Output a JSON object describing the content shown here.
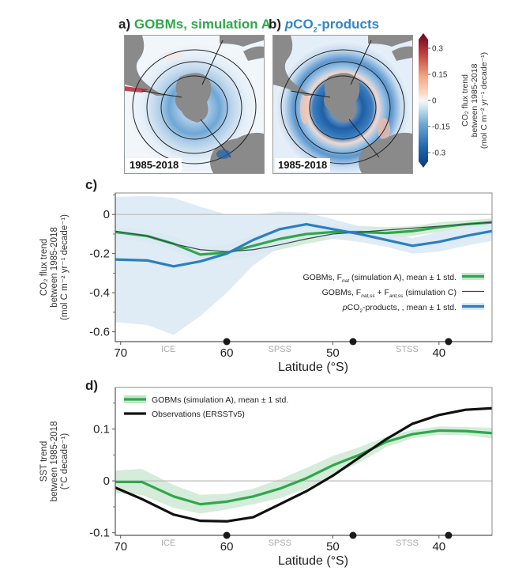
{
  "panels": {
    "a": {
      "label": "a)",
      "title": "GOBMs, simulation A",
      "period": "1985-2018"
    },
    "b": {
      "label": "b)",
      "title_prefix": "p",
      "title_main": "CO",
      "title_sub": "2",
      "title_suffix": "-products",
      "period": "1985-2018"
    },
    "c": {
      "label": "c)"
    },
    "d": {
      "label": "d)"
    }
  },
  "colorbar": {
    "ticks": [
      "0.3",
      "0.15",
      "0",
      "-0.15",
      "-0.3"
    ],
    "tick_values": [
      0.3,
      0.15,
      0,
      -0.15,
      -0.3
    ],
    "range": [
      -0.35,
      0.35
    ],
    "label_line1": "CO₂ flux trend",
    "label_line2": "between 1985-2018",
    "label_line3": "(mol C m⁻² yr⁻¹ decade⁻¹)",
    "colors": {
      "low": "#0b3a7a",
      "mid": "#f7f7f7",
      "high": "#6b0219"
    }
  },
  "colors": {
    "gobm_green": "#2ea84a",
    "gobm_band": "#c6e6cc",
    "pco2_blue": "#2a7fc1",
    "pco2_band": "#dbe9f4",
    "simC_line": "#37474f",
    "obs_black": "#111111",
    "land": "#8a8a8a",
    "zero_line": "#bbbbbb",
    "biome_label": "#aaaaaa"
  },
  "chart_data": [
    {
      "type": "line",
      "panel": "c",
      "title": "",
      "xlabel": "Latitude (°S)",
      "ylabel_lines": [
        "CO₂ flux trend",
        "between 1985-2018",
        "(mol C m⁻² yr⁻¹ decade⁻¹)"
      ],
      "xlim": [
        70.5,
        35
      ],
      "ylim": [
        -0.65,
        0.11
      ],
      "xticks": [
        70,
        60,
        50,
        40
      ],
      "xtick_labels": [
        "70",
        "60",
        "50",
        "40"
      ],
      "yticks": [
        0,
        -0.2,
        -0.4,
        -0.6
      ],
      "ytick_labels": [
        "0",
        "-0.2",
        "-0.4",
        "-0.6"
      ],
      "minor_yticks": [
        0.1,
        -0.1,
        -0.3,
        -0.5
      ],
      "zero_line": true,
      "biome_labels": [
        {
          "text": "ICE",
          "lat": 65.5
        },
        {
          "text": "SPSS",
          "lat": 55
        },
        {
          "text": "STSS",
          "lat": 43
        }
      ],
      "front_markers": [
        60,
        48.1,
        39.1
      ],
      "x": [
        70.5,
        67.5,
        65,
        62.5,
        60,
        57.5,
        55,
        52.5,
        50,
        47.5,
        45,
        42.5,
        40,
        37.5,
        35
      ],
      "series": [
        {
          "name": "GOBMs, F_nat (simulation A), mean ± 1 std.",
          "legend_main": "GOBMs, F",
          "legend_sub": "nat",
          "legend_rest": " (simulation A), mean ± 1 std.",
          "style": "band+line",
          "color": "gobm_green",
          "band_color": "gobm_band",
          "values": [
            -0.09,
            -0.11,
            -0.15,
            -0.205,
            -0.195,
            -0.16,
            -0.125,
            -0.1,
            -0.09,
            -0.09,
            -0.095,
            -0.085,
            -0.065,
            -0.05,
            -0.04
          ],
          "std": [
            0.03,
            0.03,
            0.035,
            0.04,
            0.04,
            0.05,
            0.055,
            0.05,
            0.035,
            0.03,
            0.03,
            0.025,
            0.025,
            0.02,
            0.02
          ]
        },
        {
          "name": "GOBMs, F_nat,ss + F_ant,ss (simulation C)",
          "legend_main": "GOBMs, F",
          "legend_sub": "nat,ss",
          "legend_mid": " + F",
          "legend_sub2": "ant,ss",
          "legend_rest": " (simulation C)",
          "style": "thin-line",
          "color": "simC_line",
          "values": [
            -0.085,
            -0.11,
            -0.15,
            -0.18,
            -0.19,
            -0.18,
            -0.155,
            -0.125,
            -0.1,
            -0.09,
            -0.08,
            -0.07,
            -0.06,
            -0.05,
            -0.04
          ]
        },
        {
          "name": "pCO2-products, , mean ± 1 std.",
          "legend_prefix": "p",
          "legend_main": "CO",
          "legend_sub": "2",
          "legend_rest": "-products, , mean ± 1 std.",
          "style": "band+line",
          "color": "pco2_blue",
          "band_color": "pco2_band",
          "values": [
            -0.23,
            -0.235,
            -0.265,
            -0.24,
            -0.2,
            -0.13,
            -0.075,
            -0.05,
            -0.075,
            -0.1,
            -0.13,
            -0.16,
            -0.14,
            -0.11,
            -0.085
          ],
          "std": [
            0.32,
            0.33,
            0.35,
            0.28,
            0.2,
            0.13,
            0.09,
            0.06,
            0.05,
            0.04,
            0.035,
            0.04,
            0.05,
            0.05,
            0.05
          ]
        }
      ],
      "legend_position": "lower-right"
    },
    {
      "type": "line",
      "panel": "d",
      "title": "",
      "xlabel": "Latitude (°S)",
      "ylabel_lines": [
        "SST trend",
        "between 1985-2018",
        "(°C decade⁻¹)"
      ],
      "xlim": [
        70.5,
        35
      ],
      "ylim": [
        -0.105,
        0.18
      ],
      "xticks": [
        70,
        60,
        50,
        40
      ],
      "xtick_labels": [
        "70",
        "60",
        "50",
        "40"
      ],
      "yticks": [
        0.1,
        0,
        -0.1
      ],
      "ytick_labels": [
        "0.1",
        "0",
        "-0.1"
      ],
      "minor_yticks": [
        0.15,
        0.05,
        -0.05
      ],
      "zero_line": true,
      "biome_labels": [
        {
          "text": "ICE",
          "lat": 65.5
        },
        {
          "text": "SPSS",
          "lat": 55
        },
        {
          "text": "STSS",
          "lat": 43
        }
      ],
      "front_markers": [
        60,
        48.1,
        39.1
      ],
      "x": [
        70.5,
        68,
        65,
        62.5,
        60,
        57.5,
        55,
        52.5,
        50,
        47.5,
        45,
        42.5,
        40,
        37.5,
        35
      ],
      "series": [
        {
          "name": "GOBMs (simulation A), mean ± 1 std.",
          "style": "band+line",
          "color": "gobm_green",
          "band_color": "gobm_band",
          "values": [
            -0.002,
            -0.002,
            -0.03,
            -0.045,
            -0.04,
            -0.03,
            -0.015,
            0.005,
            0.03,
            0.05,
            0.075,
            0.09,
            0.097,
            0.096,
            0.092
          ],
          "std": [
            0.022,
            0.025,
            0.022,
            0.018,
            0.015,
            0.015,
            0.018,
            0.02,
            0.018,
            0.015,
            0.01,
            0.008,
            0.008,
            0.008,
            0.01
          ]
        },
        {
          "name": "Observations (ERSSTv5)",
          "style": "thick-line",
          "color": "obs_black",
          "values": [
            -0.013,
            -0.035,
            -0.065,
            -0.077,
            -0.078,
            -0.07,
            -0.045,
            -0.02,
            0.01,
            0.045,
            0.08,
            0.11,
            0.127,
            0.137,
            0.14
          ]
        }
      ],
      "legend_position": "upper-left"
    }
  ]
}
